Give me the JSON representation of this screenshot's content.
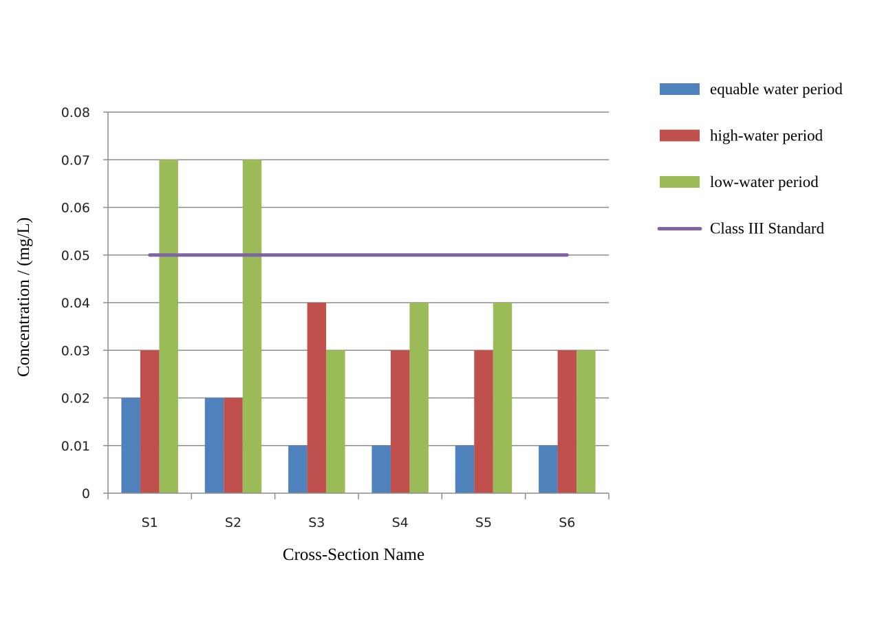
{
  "chart_data": {
    "type": "bar",
    "title": "",
    "xlabel": "Cross-Section Name",
    "ylabel": "Concentration / (mg/L)",
    "categories": [
      "S1",
      "S2",
      "S3",
      "S4",
      "S5",
      "S6"
    ],
    "ylim": [
      0,
      0.08
    ],
    "yticks": [
      0,
      0.01,
      0.02,
      0.03,
      0.04,
      0.05,
      0.06,
      0.07,
      0.08
    ],
    "ytick_labels": [
      "0",
      "0.01",
      "0.02",
      "0.03",
      "0.04",
      "0.05",
      "0.06",
      "0.07",
      "0.08"
    ],
    "grid": true,
    "legend_position": "right",
    "series": [
      {
        "name": "equable water period",
        "type": "bar",
        "color": "#4f81bd",
        "values": [
          0.02,
          0.02,
          0.01,
          0.01,
          0.01,
          0.01
        ]
      },
      {
        "name": "high-water period",
        "type": "bar",
        "color": "#c0504d",
        "values": [
          0.03,
          0.02,
          0.04,
          0.03,
          0.03,
          0.03
        ]
      },
      {
        "name": "low-water period",
        "type": "bar",
        "color": "#9bbb59",
        "values": [
          0.07,
          0.07,
          0.03,
          0.04,
          0.04,
          0.03
        ]
      },
      {
        "name": "Class III Standard",
        "type": "line",
        "color": "#8064a2",
        "values": [
          0.05,
          0.05,
          0.05,
          0.05,
          0.05,
          0.05
        ]
      }
    ]
  }
}
